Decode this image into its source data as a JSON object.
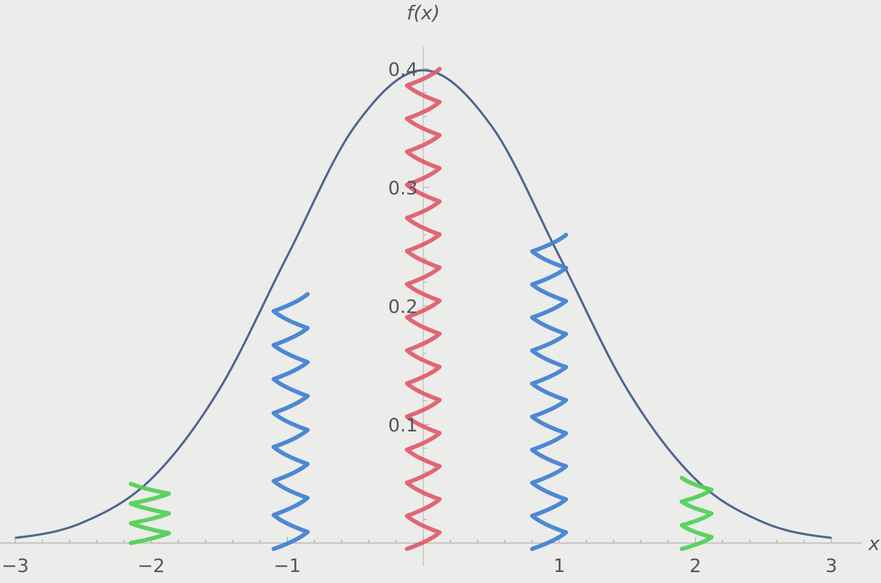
{
  "chart_data": {
    "type": "line",
    "title": "",
    "xlabel": "x",
    "ylabel": "f(x)",
    "xlim": [
      -3,
      3
    ],
    "ylim": [
      0,
      0.4
    ],
    "x_ticks": [
      -3,
      -2,
      -1,
      1,
      2,
      3
    ],
    "x_tick_labels": [
      "−3",
      "−2",
      "−1",
      "1",
      "2",
      "3"
    ],
    "y_ticks": [
      0.1,
      0.2,
      0.3,
      0.4
    ],
    "y_tick_labels": [
      "0.1",
      "0.2",
      "0.3",
      "0.4"
    ],
    "grid": false,
    "series": [
      {
        "color": "#4f6590",
        "x": [
          -3,
          -2.5,
          -2,
          -1.5,
          -1,
          -0.5,
          0,
          0.5,
          1,
          1.5,
          2,
          2.5,
          3
        ],
        "values": [
          0.0044,
          0.0175,
          0.054,
          0.1295,
          0.242,
          0.3521,
          0.3989,
          0.3521,
          0.242,
          0.1295,
          0.054,
          0.0175,
          0.0044
        ]
      }
    ],
    "annotations": [
      {
        "type": "scribble",
        "color": "#e05a6a",
        "x_range": [
          -0.12,
          0.12
        ],
        "y_range": [
          -0.005,
          0.4
        ]
      },
      {
        "type": "scribble",
        "color": "#3f7fd0",
        "x_range": [
          -1.1,
          -0.85
        ],
        "y_range": [
          -0.005,
          0.21
        ]
      },
      {
        "type": "scribble",
        "color": "#3f7fd0",
        "x_range": [
          0.8,
          1.05
        ],
        "y_range": [
          -0.005,
          0.26
        ]
      },
      {
        "type": "scribble",
        "color": "#4fcf55",
        "x_range": [
          -2.15,
          -1.87
        ],
        "y_range": [
          0.0,
          0.05
        ]
      },
      {
        "type": "scribble",
        "color": "#4fcf55",
        "x_range": [
          1.9,
          2.12
        ],
        "y_range": [
          -0.005,
          0.055
        ]
      }
    ]
  }
}
